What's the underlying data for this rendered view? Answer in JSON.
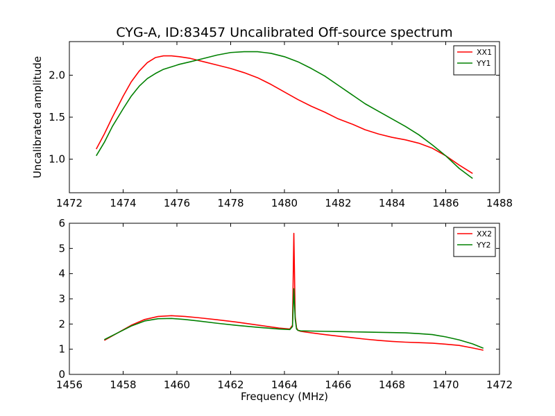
{
  "figure": {
    "title": "CYG-A, ID:83457 Uncalibrated Off-source spectrum"
  },
  "chart_data": [
    {
      "type": "line",
      "title": "CYG-A, ID:83457 Uncalibrated Off-source spectrum",
      "xlabel": "",
      "ylabel": "Uncalibrated amplitude",
      "xlim": [
        1472,
        1488
      ],
      "ylim": [
        0.6,
        2.4
      ],
      "x_ticks": [
        1472,
        1474,
        1476,
        1478,
        1480,
        1482,
        1484,
        1486,
        1488
      ],
      "y_ticks": [
        1.0,
        1.5,
        2.0
      ],
      "legend_position": "top-right",
      "grid": false,
      "series": [
        {
          "name": "XX1",
          "color": "#ff0000",
          "x": [
            1473.0,
            1473.3,
            1473.6,
            1474.0,
            1474.3,
            1474.6,
            1474.9,
            1475.2,
            1475.5,
            1475.8,
            1476.1,
            1476.5,
            1477.0,
            1477.5,
            1478.0,
            1478.5,
            1479.0,
            1479.5,
            1480.0,
            1480.5,
            1481.0,
            1481.5,
            1482.0,
            1482.5,
            1483.0,
            1483.5,
            1484.0,
            1484.5,
            1485.0,
            1485.5,
            1486.0,
            1486.5,
            1487.0
          ],
          "y": [
            1.12,
            1.3,
            1.5,
            1.75,
            1.92,
            2.05,
            2.15,
            2.21,
            2.23,
            2.23,
            2.22,
            2.2,
            2.16,
            2.12,
            2.08,
            2.03,
            1.97,
            1.89,
            1.8,
            1.71,
            1.63,
            1.56,
            1.48,
            1.42,
            1.35,
            1.3,
            1.26,
            1.23,
            1.19,
            1.13,
            1.04,
            0.93,
            0.83
          ]
        },
        {
          "name": "YY1",
          "color": "#008000",
          "x": [
            1473.0,
            1473.3,
            1473.6,
            1474.0,
            1474.3,
            1474.6,
            1474.9,
            1475.2,
            1475.5,
            1475.8,
            1476.1,
            1476.5,
            1477.0,
            1477.5,
            1478.0,
            1478.5,
            1479.0,
            1479.5,
            1480.0,
            1480.5,
            1481.0,
            1481.5,
            1482.0,
            1482.5,
            1483.0,
            1483.5,
            1484.0,
            1484.5,
            1485.0,
            1485.5,
            1486.0,
            1486.5,
            1487.0
          ],
          "y": [
            1.04,
            1.2,
            1.39,
            1.6,
            1.75,
            1.87,
            1.96,
            2.02,
            2.07,
            2.1,
            2.13,
            2.16,
            2.2,
            2.24,
            2.27,
            2.28,
            2.28,
            2.26,
            2.22,
            2.16,
            2.08,
            1.99,
            1.88,
            1.77,
            1.66,
            1.57,
            1.48,
            1.39,
            1.29,
            1.17,
            1.04,
            0.89,
            0.77
          ]
        }
      ]
    },
    {
      "type": "line",
      "title": "",
      "xlabel": "Frequency (MHz)",
      "ylabel": "",
      "xlim": [
        1456,
        1472
      ],
      "ylim": [
        0,
        6
      ],
      "x_ticks": [
        1456,
        1458,
        1460,
        1462,
        1464,
        1466,
        1468,
        1470,
        1472
      ],
      "y_ticks": [
        0,
        1,
        2,
        3,
        4,
        5,
        6
      ],
      "legend_position": "top-right",
      "grid": false,
      "series": [
        {
          "name": "XX2",
          "color": "#ff0000",
          "x": [
            1457.3,
            1457.8,
            1458.3,
            1458.8,
            1459.3,
            1459.8,
            1460.3,
            1460.8,
            1461.5,
            1462.2,
            1463.0,
            1463.8,
            1464.2,
            1464.3,
            1464.35,
            1464.4,
            1464.45,
            1464.5,
            1464.6,
            1465.0,
            1465.5,
            1466.0,
            1466.5,
            1467.0,
            1467.5,
            1468.0,
            1468.5,
            1469.0,
            1469.5,
            1470.0,
            1470.5,
            1471.0,
            1471.4
          ],
          "y": [
            1.35,
            1.65,
            1.95,
            2.18,
            2.3,
            2.33,
            2.3,
            2.25,
            2.17,
            2.08,
            1.96,
            1.84,
            1.8,
            1.95,
            5.6,
            2.3,
            1.85,
            1.75,
            1.71,
            1.65,
            1.58,
            1.52,
            1.46,
            1.4,
            1.35,
            1.31,
            1.28,
            1.26,
            1.24,
            1.2,
            1.15,
            1.05,
            0.96
          ]
        },
        {
          "name": "YY2",
          "color": "#008000",
          "x": [
            1457.3,
            1457.8,
            1458.3,
            1458.8,
            1459.3,
            1459.8,
            1460.3,
            1460.8,
            1461.5,
            1462.2,
            1463.0,
            1463.8,
            1464.2,
            1464.3,
            1464.35,
            1464.4,
            1464.45,
            1464.5,
            1464.6,
            1465.0,
            1465.5,
            1466.0,
            1466.5,
            1467.0,
            1467.5,
            1468.0,
            1468.5,
            1469.0,
            1469.5,
            1470.0,
            1470.5,
            1471.0,
            1471.4
          ],
          "y": [
            1.38,
            1.65,
            1.92,
            2.12,
            2.21,
            2.22,
            2.18,
            2.12,
            2.03,
            1.95,
            1.87,
            1.8,
            1.78,
            1.9,
            3.4,
            2.2,
            1.8,
            1.75,
            1.73,
            1.72,
            1.71,
            1.7,
            1.69,
            1.68,
            1.67,
            1.66,
            1.65,
            1.62,
            1.58,
            1.49,
            1.37,
            1.21,
            1.04
          ]
        }
      ]
    }
  ]
}
